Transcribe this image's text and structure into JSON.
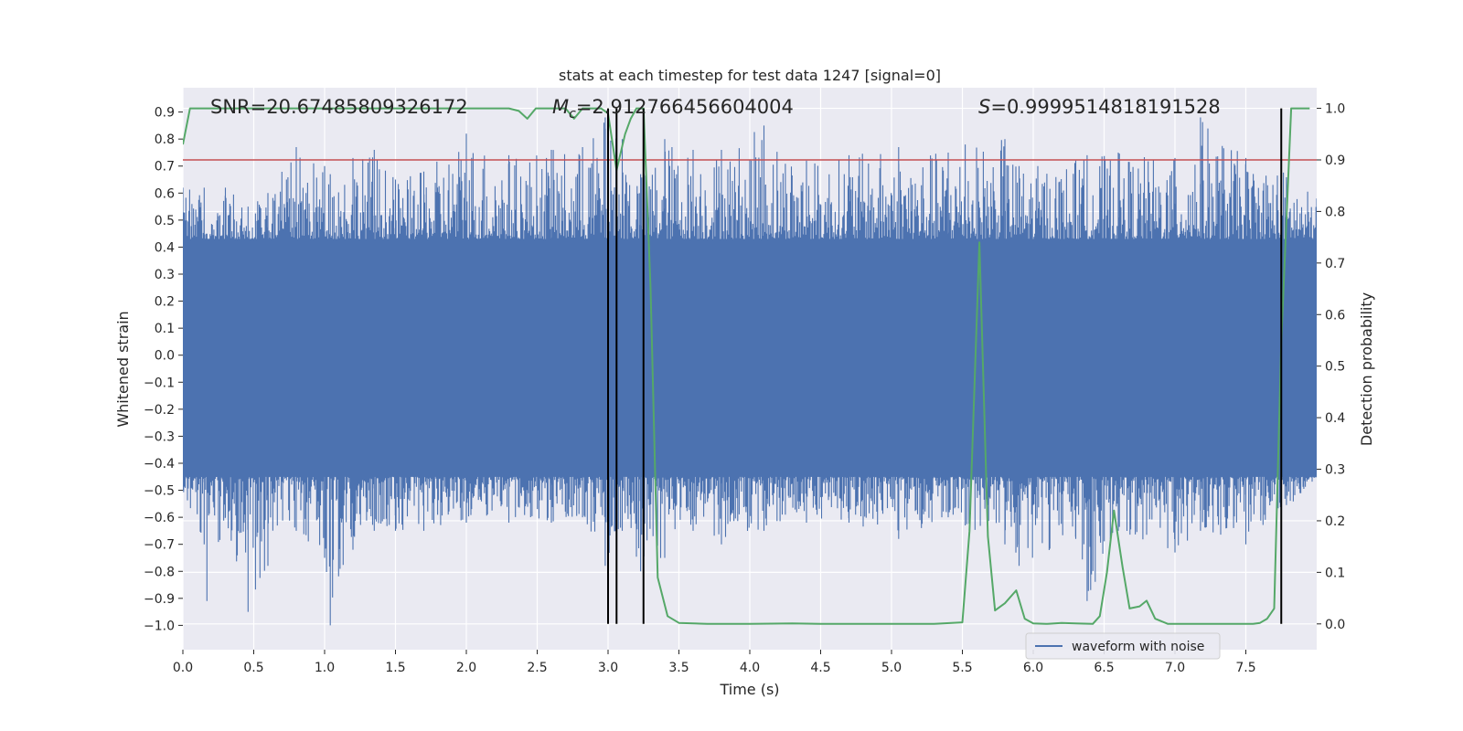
{
  "chart_data": {
    "type": "line",
    "title": "stats at each timestep for test data 1247 [signal=0]",
    "xlabel": "Time (s)",
    "ylabel_left": "Whitened strain",
    "ylabel_right": "Detection probability",
    "xlim": [
      0.0,
      8.0
    ],
    "ylim_left": [
      -1.09,
      0.99
    ],
    "ylim_right": [
      -0.05,
      1.04
    ],
    "x_ticks": [
      "0.0",
      "0.5",
      "1.0",
      "1.5",
      "2.0",
      "2.5",
      "3.0",
      "3.5",
      "4.0",
      "4.5",
      "5.0",
      "5.5",
      "6.0",
      "6.5",
      "7.0",
      "7.5"
    ],
    "y_left_ticks": [
      "0.9",
      "0.8",
      "0.7",
      "0.6",
      "0.5",
      "0.4",
      "0.3",
      "0.2",
      "0.1",
      "0.0",
      "−0.1",
      "−0.2",
      "−0.3",
      "−0.4",
      "−0.5",
      "−0.6",
      "−0.7",
      "−0.8",
      "−0.9",
      "−1.0"
    ],
    "y_right_ticks": [
      "1.0",
      "0.9",
      "0.8",
      "0.7",
      "0.6",
      "0.5",
      "0.4",
      "0.3",
      "0.2",
      "0.1",
      "0.0"
    ],
    "grid": true,
    "annotations": {
      "snr": "SNR=20.67485809326172",
      "mc_prefix": "M",
      "mc_sub": "c",
      "mc_value": "=2.912766456604004",
      "s_prefix": "S",
      "s_value": "=0.9999514818191528"
    },
    "threshold": {
      "value": 0.9,
      "axis": "right",
      "color": "#c44e52"
    },
    "vertical_lines": [
      3.0,
      3.06,
      3.25,
      7.75
    ],
    "waveform_envelope": [
      [
        0.0,
        0.62,
        -0.5
      ],
      [
        0.15,
        0.62,
        -0.7
      ],
      [
        0.17,
        0.45,
        -0.91
      ],
      [
        0.3,
        0.62,
        -0.6
      ],
      [
        0.46,
        0.55,
        -0.95
      ],
      [
        0.6,
        0.6,
        -0.78
      ],
      [
        0.8,
        0.77,
        -0.65
      ],
      [
        1.0,
        0.7,
        -0.75
      ],
      [
        1.04,
        0.67,
        -1.0
      ],
      [
        1.2,
        0.73,
        -0.72
      ],
      [
        1.35,
        0.76,
        -0.65
      ],
      [
        1.5,
        0.65,
        -0.65
      ],
      [
        1.7,
        0.68,
        -0.65
      ],
      [
        2.0,
        0.82,
        -0.62
      ],
      [
        2.3,
        0.74,
        -0.62
      ],
      [
        2.6,
        0.76,
        -0.62
      ],
      [
        2.82,
        0.77,
        -0.6
      ],
      [
        2.98,
        0.88,
        -0.78
      ],
      [
        3.1,
        0.8,
        -0.65
      ],
      [
        3.23,
        0.67,
        -0.8
      ],
      [
        3.4,
        0.8,
        -0.75
      ],
      [
        3.6,
        0.76,
        -0.65
      ],
      [
        3.8,
        0.76,
        -0.7
      ],
      [
        4.1,
        0.85,
        -0.65
      ],
      [
        4.4,
        0.72,
        -0.62
      ],
      [
        4.7,
        0.74,
        -0.62
      ],
      [
        5.05,
        0.77,
        -0.68
      ],
      [
        5.4,
        0.75,
        -0.6
      ],
      [
        5.52,
        0.78,
        -0.63
      ],
      [
        5.8,
        0.8,
        -0.7
      ],
      [
        5.9,
        0.7,
        -0.78
      ],
      [
        6.3,
        0.72,
        -0.68
      ],
      [
        6.38,
        0.74,
        -0.91
      ],
      [
        6.6,
        0.75,
        -0.65
      ],
      [
        7.0,
        0.73,
        -0.73
      ],
      [
        7.18,
        0.88,
        -0.65
      ],
      [
        7.5,
        0.73,
        -0.7
      ],
      [
        7.75,
        0.7,
        -0.6
      ],
      [
        8.0,
        0.58,
        -0.45
      ]
    ],
    "series": [
      {
        "name": "waveform with noise",
        "axis": "left",
        "color": "#4c72b0",
        "noise_band": [
          -0.45,
          0.43
        ]
      },
      {
        "axis": "right",
        "color": "#55a868",
        "points": [
          [
            0.0,
            0.93
          ],
          [
            0.05,
            1.0
          ],
          [
            0.3,
            1.0
          ],
          [
            1.0,
            1.0
          ],
          [
            1.5,
            1.0
          ],
          [
            2.0,
            1.0
          ],
          [
            2.2,
            1.0
          ],
          [
            2.3,
            1.0
          ],
          [
            2.37,
            0.995
          ],
          [
            2.43,
            0.98
          ],
          [
            2.49,
            1.0
          ],
          [
            2.6,
            1.0
          ],
          [
            2.7,
            1.0
          ],
          [
            2.76,
            0.98
          ],
          [
            2.82,
            1.0
          ],
          [
            2.95,
            1.0
          ],
          [
            3.0,
            0.99
          ],
          [
            3.06,
            0.88
          ],
          [
            3.12,
            0.95
          ],
          [
            3.16,
            0.98
          ],
          [
            3.2,
            1.0
          ],
          [
            3.25,
            1.0
          ],
          [
            3.3,
            0.65
          ],
          [
            3.35,
            0.09
          ],
          [
            3.42,
            0.015
          ],
          [
            3.5,
            0.002
          ],
          [
            3.7,
            0.0
          ],
          [
            4.0,
            0.0
          ],
          [
            4.3,
            0.001
          ],
          [
            4.5,
            0.0
          ],
          [
            5.0,
            0.0
          ],
          [
            5.3,
            0.0
          ],
          [
            5.5,
            0.003
          ],
          [
            5.55,
            0.18
          ],
          [
            5.62,
            0.74
          ],
          [
            5.68,
            0.17
          ],
          [
            5.73,
            0.026
          ],
          [
            5.8,
            0.04
          ],
          [
            5.88,
            0.065
          ],
          [
            5.94,
            0.01
          ],
          [
            6.0,
            0.001
          ],
          [
            6.1,
            0.0
          ],
          [
            6.2,
            0.002
          ],
          [
            6.3,
            0.001
          ],
          [
            6.42,
            0.0
          ],
          [
            6.47,
            0.015
          ],
          [
            6.52,
            0.1
          ],
          [
            6.57,
            0.22
          ],
          [
            6.63,
            0.11
          ],
          [
            6.68,
            0.03
          ],
          [
            6.75,
            0.034
          ],
          [
            6.8,
            0.045
          ],
          [
            6.86,
            0.01
          ],
          [
            6.95,
            0.0
          ],
          [
            7.2,
            0.0
          ],
          [
            7.4,
            0.0
          ],
          [
            7.55,
            0.0
          ],
          [
            7.6,
            0.002
          ],
          [
            7.65,
            0.01
          ],
          [
            7.7,
            0.03
          ],
          [
            7.75,
            0.55
          ],
          [
            7.82,
            1.0
          ],
          [
            7.9,
            1.0
          ],
          [
            7.95,
            1.0
          ]
        ]
      }
    ],
    "legend": {
      "placement": "lower-right",
      "label": "waveform with noise"
    }
  }
}
